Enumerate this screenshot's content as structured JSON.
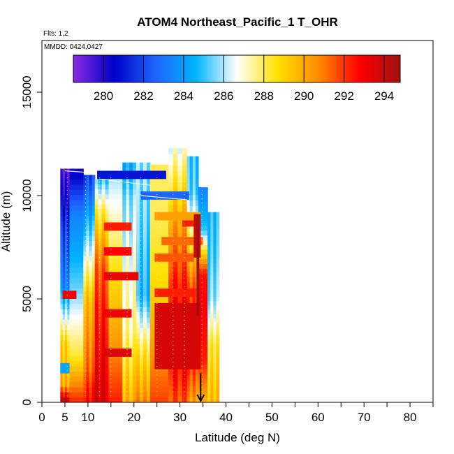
{
  "chart_data": {
    "type": "heatmap",
    "title": "ATOM4 Northeast_Pacific_1 T_OHR",
    "flights_label": "Flts: 1,2",
    "dates_label": "MMDD: 0424,0427",
    "xlabel": "Latitude (deg N)",
    "ylabel": "Altitude (m)",
    "xlim": [
      0,
      85
    ],
    "ylim": [
      0,
      17500
    ],
    "x_ticks_major": [
      "0",
      "5",
      "10",
      "20",
      "30",
      "40",
      "50",
      "60",
      "70",
      "80"
    ],
    "x_tick_values": [
      0,
      5,
      10,
      20,
      30,
      40,
      50,
      60,
      70,
      80
    ],
    "x_minor_ticks": [
      15,
      25,
      35,
      45,
      55,
      65,
      75,
      85
    ],
    "y_ticks": [
      "0",
      "5000",
      "10000",
      "15000"
    ],
    "y_tick_values": [
      0,
      5000,
      10000,
      15000
    ],
    "colorbar": {
      "min": 278.5,
      "max": 294.8,
      "tick_values": [
        280,
        282,
        284,
        286,
        288,
        290,
        292,
        294
      ],
      "tick_labels": [
        "280",
        "282",
        "284",
        "286",
        "288",
        "290",
        "292",
        "294"
      ],
      "colors": [
        "#8a2be2",
        "#0000c8",
        "#1e64ff",
        "#00b4ff",
        "#ffffff",
        "#ffe000",
        "#ff8c00",
        "#ff0000",
        "#a01010"
      ]
    },
    "arrow_marker_latitude": 34.5,
    "columns": [
      {
        "x0": 4.0,
        "x1": 6.0,
        "ytop": 11300,
        "c": [
          [
            0,
            1.0
          ],
          [
            0.08,
            0.7
          ],
          [
            0.25,
            0.65
          ],
          [
            0.5,
            0.3
          ],
          [
            0.75,
            0.2
          ],
          [
            0.9,
            0.1
          ],
          [
            1,
            0.05
          ]
        ]
      },
      {
        "x0": 6.0,
        "x1": 9.0,
        "ytop": 11300,
        "c": [
          [
            0,
            0.85
          ],
          [
            0.2,
            0.6
          ],
          [
            0.5,
            0.42
          ],
          [
            0.8,
            0.3
          ],
          [
            1,
            0.1
          ]
        ]
      },
      {
        "x0": 9.0,
        "x1": 11.5,
        "ytop": 11000,
        "c": [
          [
            0,
            0.88
          ],
          [
            0.15,
            0.78
          ],
          [
            0.45,
            0.68
          ],
          [
            0.7,
            0.45
          ],
          [
            1,
            0.2
          ]
        ]
      },
      {
        "x0": 11.5,
        "x1": 14.5,
        "ytop": 10800,
        "c": [
          [
            0,
            0.93
          ],
          [
            0.3,
            0.88
          ],
          [
            0.6,
            0.8
          ],
          [
            0.85,
            0.6
          ],
          [
            1,
            0.4
          ]
        ]
      },
      {
        "x0": 14.5,
        "x1": 17.5,
        "ytop": 10800,
        "c": [
          [
            0,
            0.85
          ],
          [
            0.3,
            0.72
          ],
          [
            0.6,
            0.62
          ],
          [
            0.85,
            0.52
          ],
          [
            1,
            0.46
          ]
        ]
      },
      {
        "x0": 17.5,
        "x1": 20.5,
        "ytop": 11600,
        "c": [
          [
            0,
            0.7
          ],
          [
            0.3,
            0.55
          ],
          [
            0.6,
            0.5
          ],
          [
            0.85,
            0.44
          ],
          [
            1,
            0.35
          ]
        ]
      },
      {
        "x0": 20.5,
        "x1": 23.5,
        "ytop": 11600,
        "c": [
          [
            0,
            0.75
          ],
          [
            0.2,
            0.62
          ],
          [
            0.45,
            0.38
          ],
          [
            0.7,
            0.42
          ],
          [
            1,
            0.45
          ]
        ]
      },
      {
        "x0": 23.5,
        "x1": 27.5,
        "ytop": 11500,
        "c": [
          [
            0,
            0.82
          ],
          [
            0.3,
            0.7
          ],
          [
            0.55,
            0.62
          ],
          [
            0.8,
            0.58
          ],
          [
            1,
            0.58
          ]
        ]
      },
      {
        "x0": 27.5,
        "x1": 31.5,
        "ytop": 12300,
        "c": [
          [
            0,
            0.8
          ],
          [
            0.2,
            0.9
          ],
          [
            0.45,
            0.86
          ],
          [
            0.7,
            0.72
          ],
          [
            1,
            0.5
          ]
        ]
      },
      {
        "x0": 31.5,
        "x1": 34.0,
        "ytop": 11900,
        "c": [
          [
            0,
            0.72
          ],
          [
            0.2,
            0.88
          ],
          [
            0.45,
            0.82
          ],
          [
            0.65,
            0.62
          ],
          [
            0.85,
            0.42
          ],
          [
            1,
            0.4
          ]
        ]
      },
      {
        "x0": 34.0,
        "x1": 36.0,
        "ytop": 10400,
        "c": [
          [
            0,
            0.7
          ],
          [
            0.2,
            0.85
          ],
          [
            0.45,
            0.88
          ],
          [
            0.6,
            0.86
          ],
          [
            0.8,
            0.4
          ],
          [
            1,
            0.3
          ]
        ]
      },
      {
        "x0": 36.0,
        "x1": 38.5,
        "ytop": 9200,
        "c": [
          [
            0,
            0.68
          ],
          [
            0.3,
            0.6
          ],
          [
            0.55,
            0.44
          ],
          [
            0.8,
            0.4
          ],
          [
            1,
            0.38
          ]
        ]
      }
    ],
    "bands": [
      {
        "x0": 13.5,
        "x1": 19.5,
        "y0": 8300,
        "y1": 8700,
        "c": 0.85
      },
      {
        "x0": 13.5,
        "x1": 19.5,
        "y0": 7100,
        "y1": 7500,
        "c": 0.88
      },
      {
        "x0": 13.5,
        "x1": 21.0,
        "y0": 5900,
        "y1": 6300,
        "c": 0.9
      },
      {
        "x0": 13.5,
        "x1": 19.5,
        "y0": 4100,
        "y1": 4500,
        "c": 0.9
      },
      {
        "x0": 13.5,
        "x1": 19.5,
        "y0": 2200,
        "y1": 2600,
        "c": 0.92
      },
      {
        "x0": 24.5,
        "x1": 34.5,
        "y0": 8800,
        "y1": 9200,
        "c": 0.72
      },
      {
        "x0": 26.0,
        "x1": 35.0,
        "y0": 7600,
        "y1": 8000,
        "c": 0.78
      },
      {
        "x0": 24.5,
        "x1": 33.0,
        "y0": 6800,
        "y1": 7200,
        "c": 0.8
      },
      {
        "x0": 24.5,
        "x1": 33.5,
        "y0": 5100,
        "y1": 5500,
        "c": 0.85
      },
      {
        "x0": 4.5,
        "x1": 7.5,
        "y0": 5000,
        "y1": 5400,
        "c": 0.9
      },
      {
        "x0": 24.5,
        "x1": 34.5,
        "y0": 1600,
        "y1": 4800,
        "c": 0.93
      },
      {
        "x0": 12.0,
        "x1": 27.0,
        "y0": 10800,
        "y1": 11200,
        "c": 0.15
      },
      {
        "x0": 21.5,
        "x1": 32.0,
        "y0": 9800,
        "y1": 10200,
        "c": 0.25
      },
      {
        "x0": 30.5,
        "x1": 34.5,
        "y0": 8500,
        "y1": 8800,
        "c": 0.85
      },
      {
        "x0": 33.0,
        "x1": 34.5,
        "y0": 7000,
        "y1": 9100,
        "c": 0.95
      },
      {
        "x0": 33.6,
        "x1": 34.2,
        "y0": 4200,
        "y1": 9100,
        "c": 1.0
      },
      {
        "x0": 4.0,
        "x1": 6.0,
        "y0": 1400,
        "y1": 1900,
        "c": 0.35
      }
    ]
  }
}
